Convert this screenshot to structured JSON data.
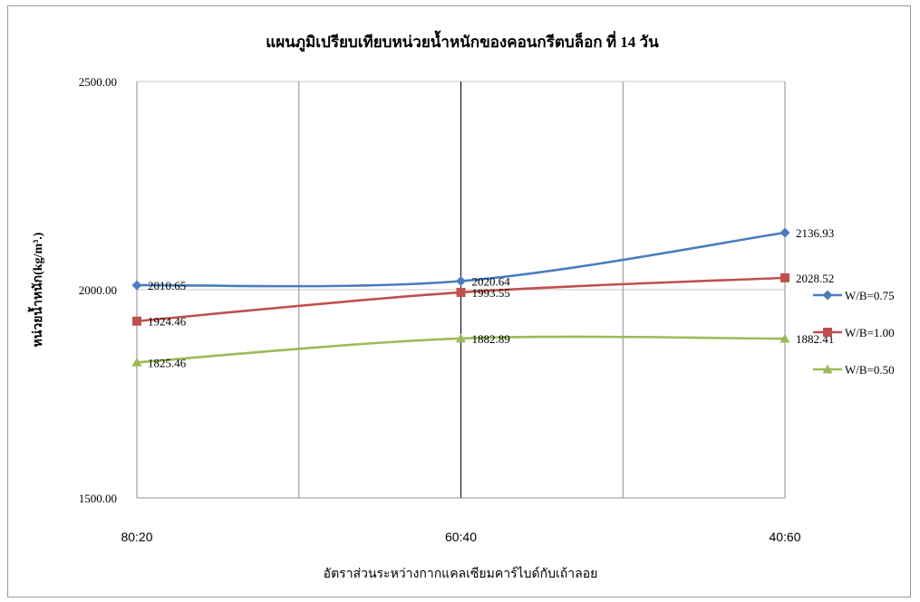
{
  "chart_data": {
    "type": "line",
    "title": "แผนภูมิเปรียบเทียบหน่วยน้ำหนักของคอนกรีตบล็อก ที่ 14 วัน",
    "xlabel": "อัตราส่วนระหว่างกากแคลเซียมคาร์ไบด์กับเถ้าลอย",
    "ylabel": "หน่วยน้ำหนัก(kg/m³.)",
    "categories": [
      "80:20",
      "60:40",
      "40:60"
    ],
    "ylim": [
      1500,
      2500
    ],
    "yticks": [
      "1500.00",
      "2000.00",
      "2500.00"
    ],
    "grid": true,
    "smooth": true,
    "legend_position": "right",
    "series": [
      {
        "name": "W/B=0.75",
        "values": [
          2010.65,
          2020.64,
          2136.93
        ],
        "labels": [
          "2010.65",
          "2020.64",
          "2136.93"
        ],
        "color": "#4a7cc0",
        "marker": "diamond"
      },
      {
        "name": "W/B=1.00",
        "values": [
          1924.46,
          1993.55,
          2028.52
        ],
        "labels": [
          "1924.46",
          "1993.55",
          "2028.52"
        ],
        "color": "#c0504d",
        "marker": "square"
      },
      {
        "name": "W/B=0.50",
        "values": [
          1825.46,
          1882.89,
          1882.41
        ],
        "labels": [
          "1825.46",
          "1882.89",
          "1882.41"
        ],
        "color": "#9bbb59",
        "marker": "triangle"
      }
    ]
  }
}
